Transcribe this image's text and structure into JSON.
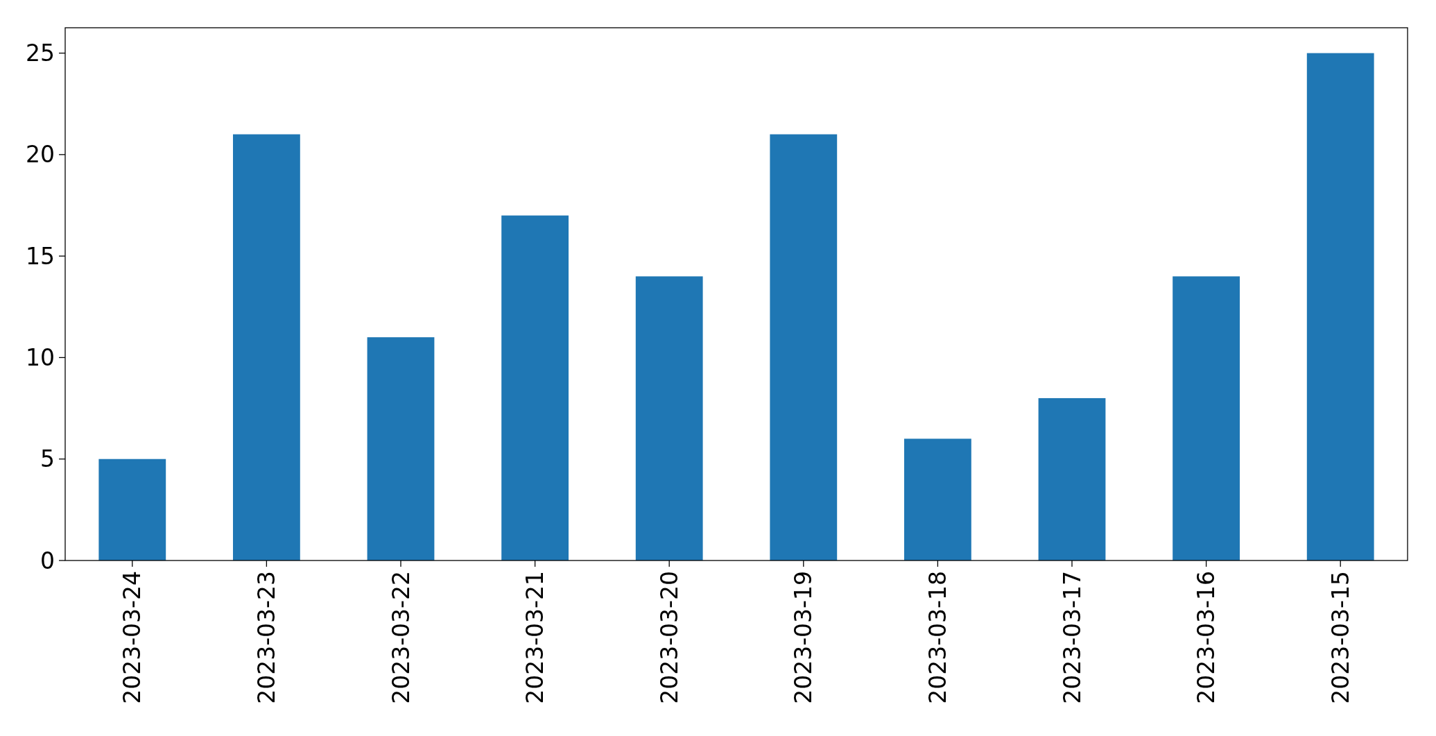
{
  "chart_data": {
    "type": "bar",
    "categories": [
      "2023-03-24",
      "2023-03-23",
      "2023-03-22",
      "2023-03-21",
      "2023-03-20",
      "2023-03-19",
      "2023-03-18",
      "2023-03-17",
      "2023-03-16",
      "2023-03-15"
    ],
    "values": [
      5,
      21,
      11,
      17,
      14,
      21,
      6,
      8,
      14,
      25
    ],
    "color": "#1f77b4",
    "ylim": [
      0,
      26.25
    ],
    "yticks": [
      0,
      5,
      10,
      15,
      20,
      25
    ],
    "grid": false
  }
}
